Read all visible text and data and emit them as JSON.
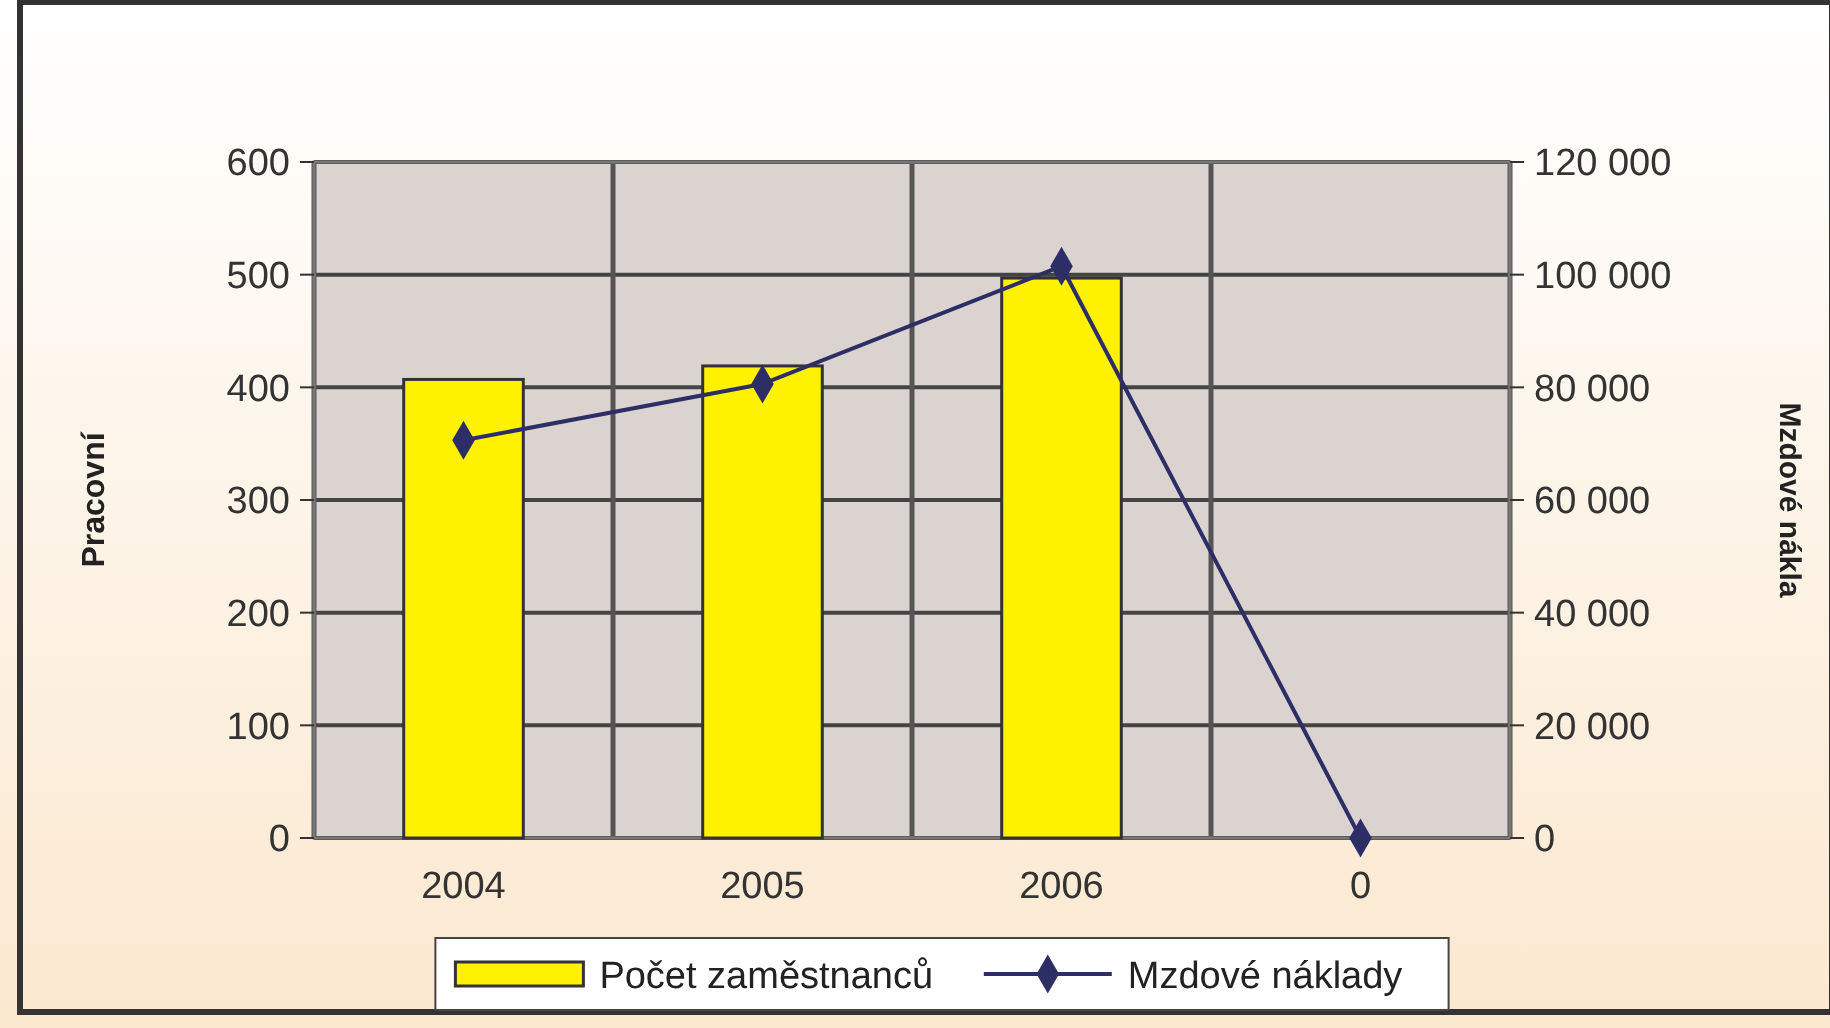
{
  "chart_data": {
    "type": "bar",
    "categories": [
      "2004",
      "2005",
      "2006",
      "0"
    ],
    "series": [
      {
        "name": "Počet zaměstnanců",
        "color": "#fff200",
        "values": [
          407,
          419,
          497,
          null
        ]
      },
      {
        "name": "Mzdové náklady",
        "type": "line",
        "axis": "y2",
        "color": "#2e2e66",
        "values": [
          70600,
          80600,
          101500,
          0
        ]
      }
    ],
    "ylabel": "Pracovní",
    "y2label": "Mzdové nákla",
    "ylim": [
      0,
      600
    ],
    "yticks": [
      0,
      100,
      200,
      300,
      400,
      500,
      600
    ],
    "y2lim": [
      0,
      120000
    ],
    "y2ticks": [
      0,
      {
        "value": 20000,
        "label": "20 000"
      },
      {
        "value": 40000,
        "label": "40 000"
      },
      {
        "value": 60000,
        "label": "60 000"
      },
      {
        "value": 80000,
        "label": "80 000"
      },
      {
        "value": 100000,
        "label": "100 000"
      },
      {
        "value": 120000,
        "label": "120 000"
      }
    ],
    "grid": true,
    "legend": "bottom",
    "marker": "diamond"
  }
}
